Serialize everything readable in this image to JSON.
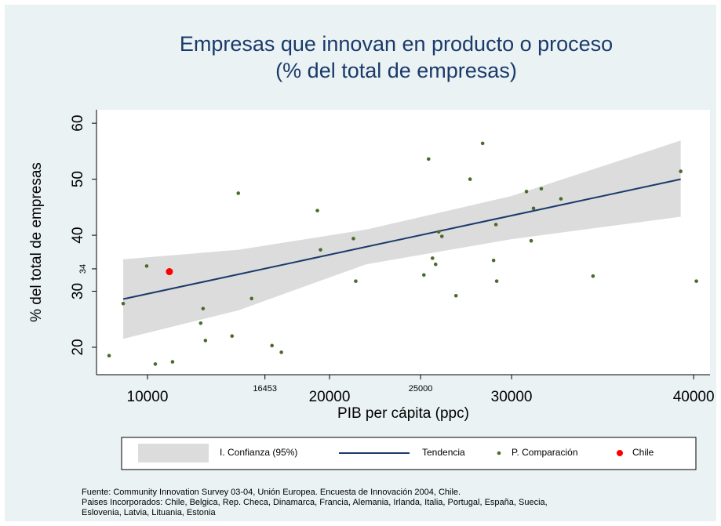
{
  "chart_data": {
    "type": "scatter",
    "title": [
      "Empresas que innovan en producto o proceso",
      "(% del total de empresas)"
    ],
    "xlabel": "PIB per cápita (ppc)",
    "ylabel": "% del total de empresas",
    "xlim": [
      7200,
      40900
    ],
    "ylim": [
      15.1,
      62.4
    ],
    "xticks": [
      10000,
      20000,
      30000,
      40000
    ],
    "xticks_extra": [
      16453,
      25000
    ],
    "yticks": [
      20,
      30,
      40,
      50,
      60
    ],
    "yticks_extra": [
      34
    ],
    "series": [
      {
        "name": "I. Confianza (95%)",
        "type": "band",
        "color": "#dcdcdc",
        "x": [
          8667,
          15000,
          22000,
          30000,
          39290
        ],
        "lower": [
          21.5,
          26.6,
          34.8,
          39.3,
          43.3
        ],
        "upper": [
          35.7,
          37.4,
          41.0,
          47.0,
          56.9
        ]
      },
      {
        "name": "Tendencia",
        "type": "line",
        "color": "#1a3a6b",
        "x": [
          8667,
          39290
        ],
        "values": [
          28.6,
          50.0
        ]
      },
      {
        "name": "P. Comparación",
        "type": "points",
        "color": "#4a6b2a",
        "x": [
          7892,
          8667,
          9957,
          10430,
          11376,
          12925,
          13054,
          13183,
          14645,
          14989,
          15720,
          16839,
          17355,
          19333,
          19505,
          21312,
          21441,
          25183,
          25441,
          25656,
          25828,
          26000,
          26172,
          26946,
          27720,
          28409,
          29011,
          29140,
          29183,
          30817,
          31075,
          31204,
          31634,
          32710,
          34473,
          39290,
          40150
        ],
        "values": [
          18.5,
          27.8,
          34.5,
          17.0,
          17.4,
          24.3,
          26.9,
          21.2,
          22.0,
          47.5,
          28.7,
          20.3,
          19.1,
          44.4,
          37.4,
          39.4,
          31.8,
          32.9,
          53.6,
          35.9,
          34.8,
          40.6,
          39.8,
          29.2,
          50.0,
          56.4,
          35.5,
          41.9,
          31.8,
          47.8,
          39.0,
          44.8,
          48.3,
          46.5,
          32.7,
          51.4,
          31.8
        ]
      },
      {
        "name": "Chile",
        "type": "points",
        "color": "#ff0000",
        "x": [
          11204
        ],
        "values": [
          33.5
        ]
      }
    ],
    "source": [
      "Fuente: Community Innovation Survey 03-04, Unión Europea. Encuesta de Innovación 2004, Chile.",
      "Paises Incorporados: Chile, Belgica, Rep. Checa, Dinamarca, Francia, Alemania, Irlanda, Italia, Portugal, España, Suecia,",
      "Eslovenia, Latvia, Lituania, Estonia"
    ]
  }
}
